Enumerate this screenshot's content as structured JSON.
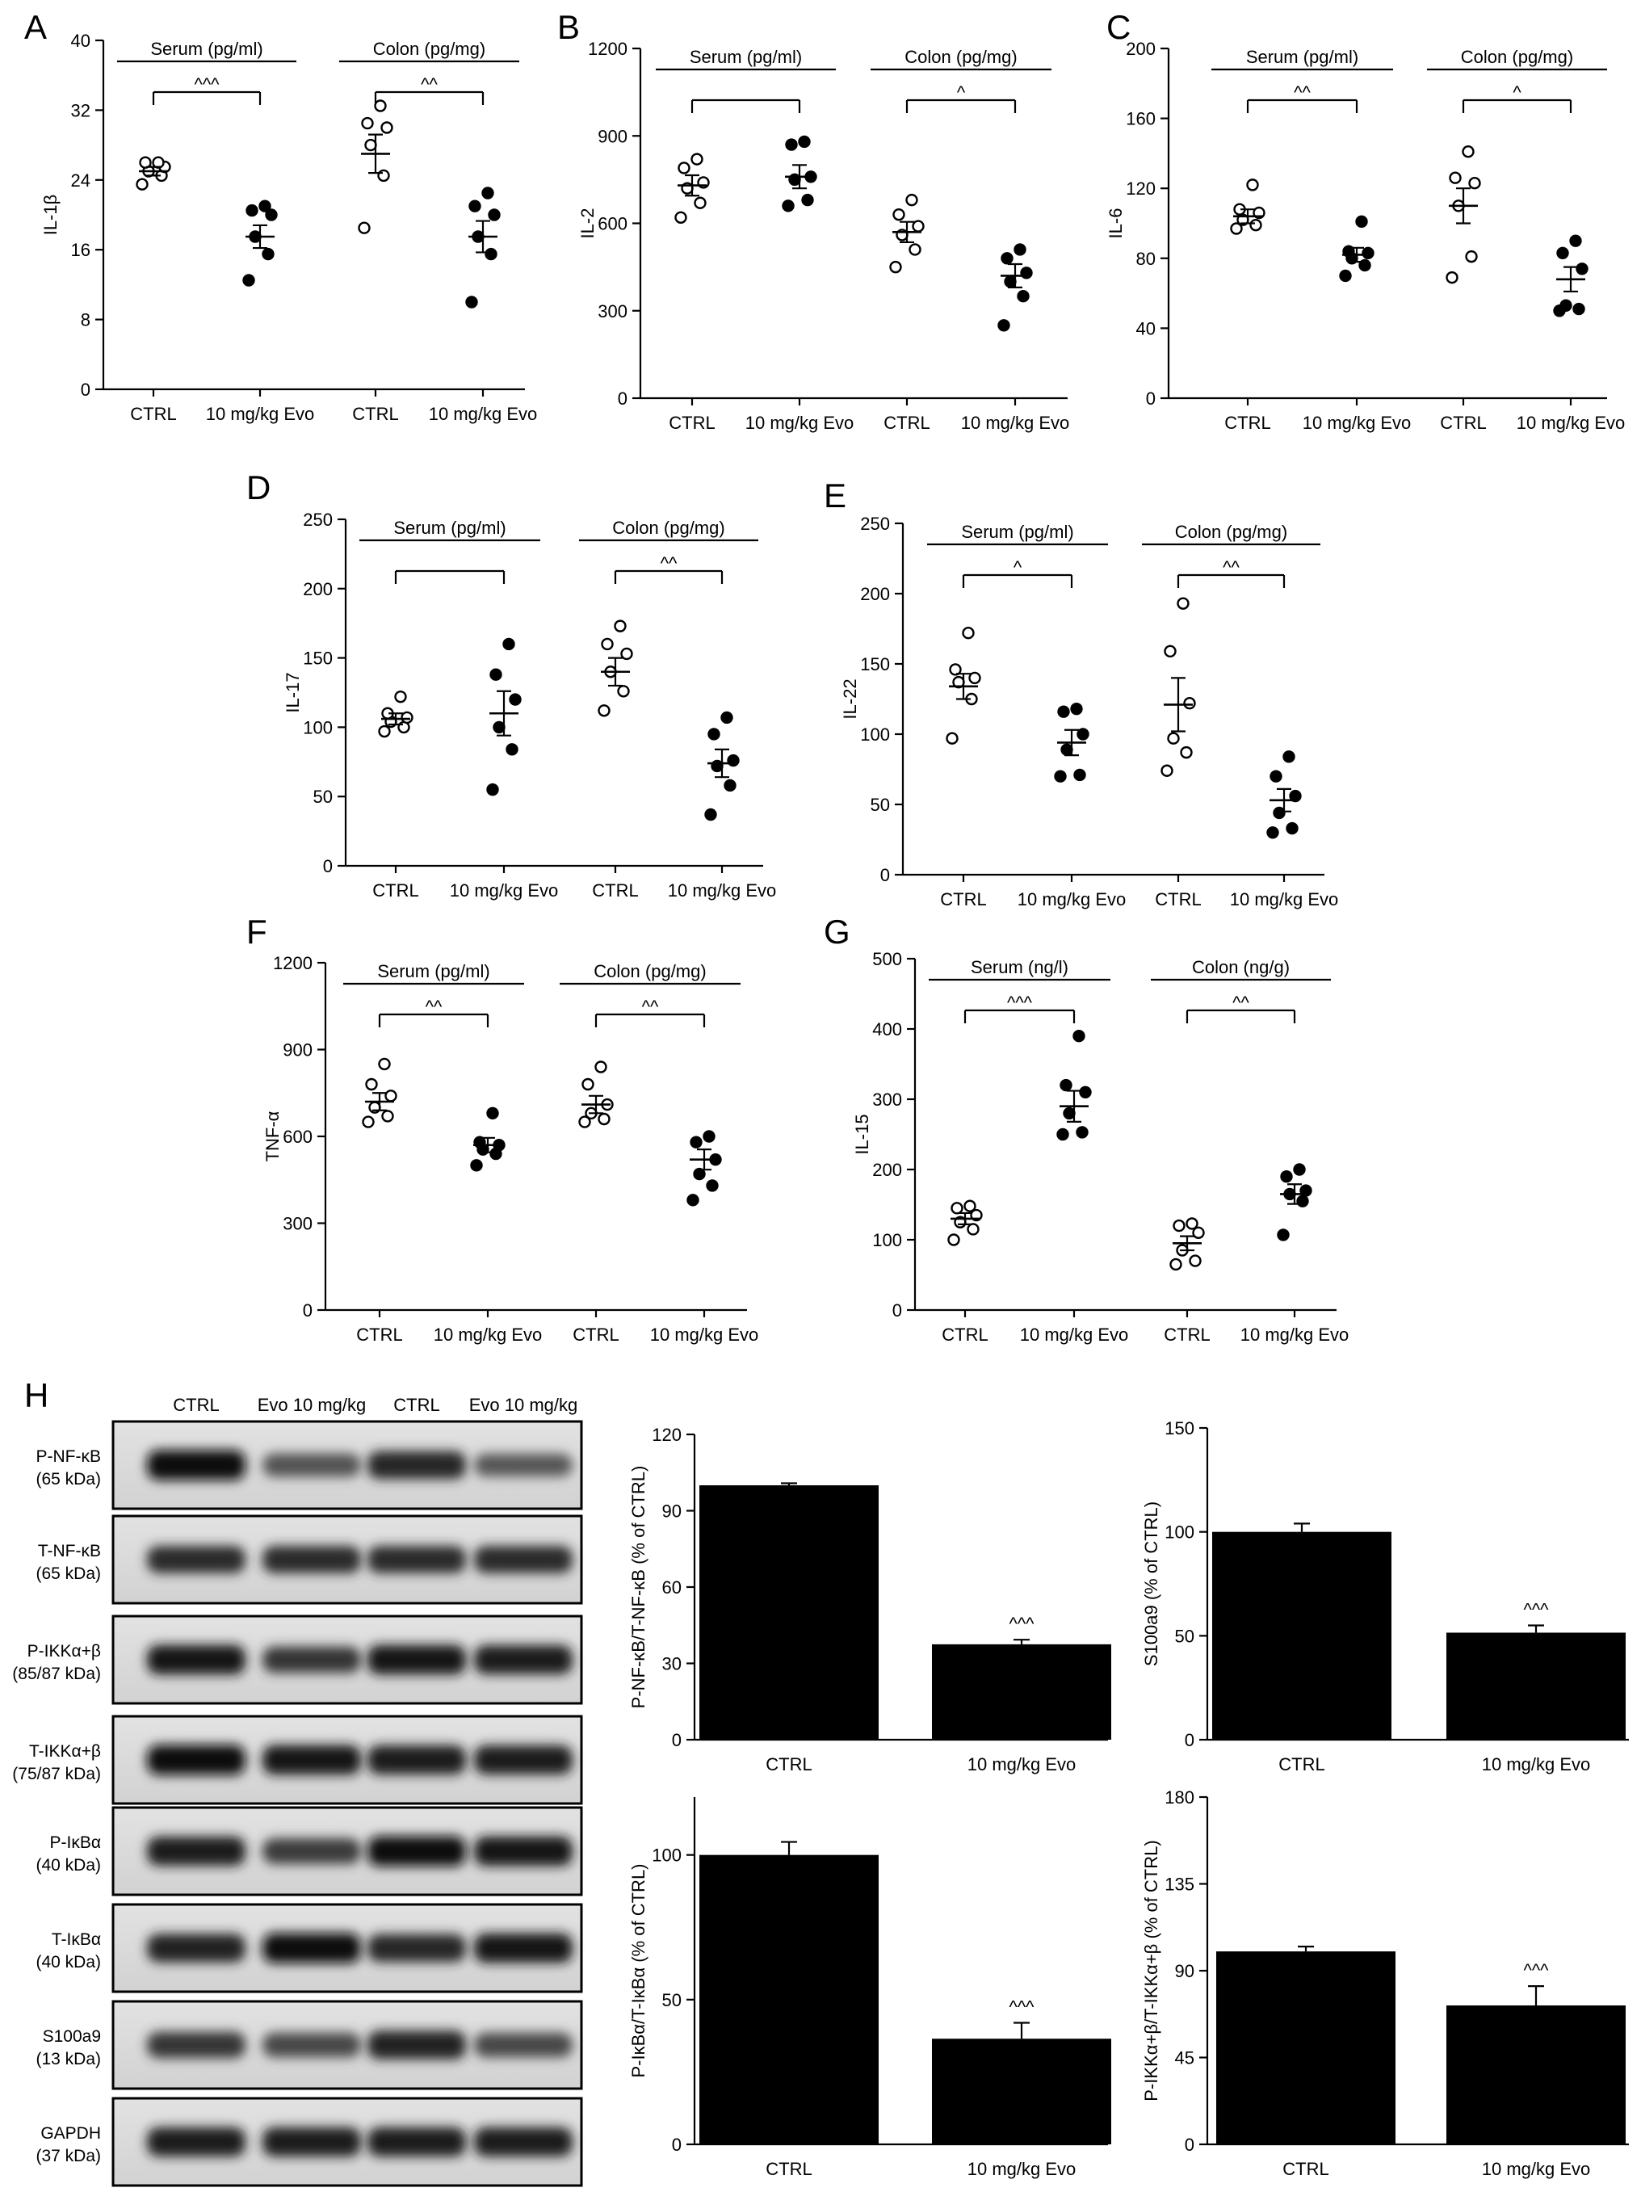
{
  "chart_data": [
    {
      "panel": "A",
      "type": "scatter",
      "ylabel": "IL-1β",
      "ylim": [
        0,
        40
      ],
      "yticks": [
        0,
        8,
        16,
        24,
        32,
        40
      ],
      "categories": [
        "CTRL",
        "10 mg/kg Evo",
        "CTRL",
        "10 mg/kg Evo"
      ],
      "groups": [
        {
          "label": "Serum (pg/ml)",
          "sig": "^^^"
        },
        {
          "label": "Colon (pg/mg)",
          "sig": "^^"
        }
      ],
      "series": [
        {
          "open": true,
          "points": [
            23.5,
            24.5,
            25,
            25.5,
            26,
            26
          ],
          "mean": 25,
          "sem": 0.5
        },
        {
          "open": false,
          "points": [
            12.5,
            15.5,
            17.5,
            20,
            20.5,
            21
          ],
          "mean": 17.5,
          "sem": 1.3
        },
        {
          "open": true,
          "points": [
            18.5,
            24.5,
            28,
            30,
            30.5,
            32.5
          ],
          "mean": 27,
          "sem": 2.2
        },
        {
          "open": false,
          "points": [
            10,
            15.5,
            17.5,
            20,
            21,
            22.5
          ],
          "mean": 17.5,
          "sem": 1.8
        }
      ]
    },
    {
      "panel": "B",
      "type": "scatter",
      "ylabel": "IL-2",
      "ylim": [
        0,
        1200
      ],
      "yticks": [
        0,
        300,
        600,
        900,
        1200
      ],
      "categories": [
        "CTRL",
        "10 mg/kg Evo",
        "CTRL",
        "10 mg/kg Evo"
      ],
      "groups": [
        {
          "label": "Serum (pg/ml)",
          "sig": ""
        },
        {
          "label": "Colon (pg/mg)",
          "sig": "^"
        }
      ],
      "series": [
        {
          "open": true,
          "points": [
            620,
            670,
            720,
            740,
            790,
            820
          ],
          "mean": 730,
          "sem": 35
        },
        {
          "open": false,
          "points": [
            660,
            680,
            750,
            760,
            870,
            880
          ],
          "mean": 760,
          "sem": 40
        },
        {
          "open": true,
          "points": [
            450,
            510,
            560,
            590,
            630,
            680
          ],
          "mean": 570,
          "sem": 35
        },
        {
          "open": false,
          "points": [
            250,
            350,
            400,
            430,
            480,
            510
          ],
          "mean": 420,
          "sem": 40
        }
      ]
    },
    {
      "panel": "C",
      "type": "scatter",
      "ylabel": "IL-6",
      "ylim": [
        0,
        200
      ],
      "yticks": [
        0,
        40,
        80,
        120,
        160,
        200
      ],
      "categories": [
        "CTRL",
        "10 mg/kg Evo",
        "CTRL",
        "10 mg/kg Evo"
      ],
      "groups": [
        {
          "label": "Serum (pg/ml)",
          "sig": "^^"
        },
        {
          "label": "Colon (pg/mg)",
          "sig": "^"
        }
      ],
      "series": [
        {
          "open": true,
          "points": [
            97,
            99,
            102,
            106,
            108,
            122
          ],
          "mean": 104,
          "sem": 4
        },
        {
          "open": false,
          "points": [
            70,
            76,
            80,
            83,
            84,
            101
          ],
          "mean": 82,
          "sem": 4
        },
        {
          "open": true,
          "points": [
            69,
            81,
            110,
            123,
            126,
            141
          ],
          "mean": 110,
          "sem": 10
        },
        {
          "open": false,
          "points": [
            50,
            51,
            53,
            74,
            83,
            90
          ],
          "mean": 68,
          "sem": 7
        }
      ]
    },
    {
      "panel": "D",
      "type": "scatter",
      "ylabel": "IL-17",
      "ylim": [
        0,
        250
      ],
      "yticks": [
        0,
        50,
        100,
        150,
        200,
        250
      ],
      "categories": [
        "CTRL",
        "10 mg/kg Evo",
        "CTRL",
        "10 mg/kg Evo"
      ],
      "groups": [
        {
          "label": "Serum (pg/ml)",
          "sig": ""
        },
        {
          "label": "Colon (pg/mg)",
          "sig": "^^"
        }
      ],
      "series": [
        {
          "open": true,
          "points": [
            97,
            100,
            104,
            107,
            110,
            122
          ],
          "mean": 106,
          "sem": 4
        },
        {
          "open": false,
          "points": [
            55,
            84,
            100,
            120,
            138,
            160
          ],
          "mean": 110,
          "sem": 16
        },
        {
          "open": true,
          "points": [
            112,
            126,
            140,
            153,
            160,
            173
          ],
          "mean": 140,
          "sem": 10
        },
        {
          "open": false,
          "points": [
            37,
            58,
            72,
            76,
            95,
            107
          ],
          "mean": 74,
          "sem": 10
        }
      ]
    },
    {
      "panel": "E",
      "type": "scatter",
      "ylabel": "IL-22",
      "ylim": [
        0,
        250
      ],
      "yticks": [
        0,
        50,
        100,
        150,
        200,
        250
      ],
      "categories": [
        "CTRL",
        "10 mg/kg Evo",
        "CTRL",
        "10 mg/kg Evo"
      ],
      "groups": [
        {
          "label": "Serum (pg/ml)",
          "sig": "^"
        },
        {
          "label": "Colon (pg/mg)",
          "sig": "^^"
        }
      ],
      "series": [
        {
          "open": true,
          "points": [
            97,
            125,
            137,
            140,
            146,
            172
          ],
          "mean": 134,
          "sem": 9
        },
        {
          "open": false,
          "points": [
            70,
            71,
            89,
            100,
            116,
            118
          ],
          "mean": 94,
          "sem": 9
        },
        {
          "open": true,
          "points": [
            74,
            87,
            97,
            122,
            159,
            193
          ],
          "mean": 121,
          "sem": 19
        },
        {
          "open": false,
          "points": [
            30,
            33,
            44,
            56,
            70,
            84
          ],
          "mean": 53,
          "sem": 8
        }
      ]
    },
    {
      "panel": "F",
      "type": "scatter",
      "ylabel": "TNF-α",
      "ylim": [
        0,
        1200
      ],
      "yticks": [
        0,
        300,
        600,
        900,
        1200
      ],
      "categories": [
        "CTRL",
        "10 mg/kg Evo",
        "CTRL",
        "10 mg/kg Evo"
      ],
      "groups": [
        {
          "label": "Serum (pg/ml)",
          "sig": "^^"
        },
        {
          "label": "Colon (pg/mg)",
          "sig": "^^"
        }
      ],
      "series": [
        {
          "open": true,
          "points": [
            650,
            670,
            700,
            740,
            780,
            850
          ],
          "mean": 720,
          "sem": 30
        },
        {
          "open": false,
          "points": [
            500,
            540,
            555,
            570,
            580,
            680
          ],
          "mean": 570,
          "sem": 25
        },
        {
          "open": true,
          "points": [
            650,
            660,
            680,
            710,
            780,
            840
          ],
          "mean": 710,
          "sem": 30
        },
        {
          "open": false,
          "points": [
            380,
            430,
            470,
            520,
            580,
            600
          ],
          "mean": 520,
          "sem": 35
        }
      ]
    },
    {
      "panel": "G",
      "type": "scatter",
      "ylabel": "IL-15",
      "ylim": [
        0,
        500
      ],
      "yticks": [
        0,
        100,
        200,
        300,
        400,
        500
      ],
      "categories": [
        "CTRL",
        "10 mg/kg Evo",
        "CTRL",
        "10 mg/kg Evo"
      ],
      "groups": [
        {
          "label": "Serum (ng/l)",
          "sig": "^^^"
        },
        {
          "label": "Colon (ng/g)",
          "sig": "^^"
        }
      ],
      "series": [
        {
          "open": true,
          "points": [
            100,
            115,
            125,
            135,
            145,
            148
          ],
          "mean": 130,
          "sem": 8
        },
        {
          "open": false,
          "points": [
            250,
            253,
            280,
            310,
            320,
            390
          ],
          "mean": 290,
          "sem": 22
        },
        {
          "open": true,
          "points": [
            65,
            70,
            85,
            110,
            120,
            123
          ],
          "mean": 95,
          "sem": 10
        },
        {
          "open": false,
          "points": [
            107,
            155,
            165,
            170,
            190,
            200
          ],
          "mean": 165,
          "sem": 14
        }
      ]
    },
    {
      "panel": "H1",
      "type": "bar",
      "ylabel": "P-NF-κB/T-NF-κB (% of CTRL)",
      "ylim": [
        0,
        120
      ],
      "yticks": [
        0,
        30,
        60,
        90,
        120
      ],
      "categories": [
        "CTRL",
        "10 mg/kg Evo"
      ],
      "values": [
        100,
        37.5
      ],
      "errors": [
        0.8,
        1.8
      ],
      "sig": [
        "",
        "^^^"
      ]
    },
    {
      "panel": "H2",
      "type": "bar",
      "ylabel": "S100a9 (% of CTRL)",
      "ylim": [
        0,
        150
      ],
      "yticks": [
        0,
        50,
        100,
        150
      ],
      "categories": [
        "CTRL",
        "10 mg/kg Evo"
      ],
      "values": [
        100,
        51.5
      ],
      "errors": [
        4,
        3.5
      ],
      "sig": [
        "",
        "^^^"
      ]
    },
    {
      "panel": "H3",
      "type": "bar",
      "ylabel": "P-IκBα/T-IκBα (% of CTRL)",
      "ylim": [
        0,
        120
      ],
      "yticks": [
        0,
        50,
        100
      ],
      "categories": [
        "CTRL",
        "10 mg/kg Evo"
      ],
      "values": [
        100,
        36.5
      ],
      "errors": [
        4.5,
        5.5
      ],
      "sig": [
        "",
        "^^^"
      ]
    },
    {
      "panel": "H4",
      "type": "bar",
      "ylabel": "P-IKKα+β/T-IKKα+β (% of CTRL)",
      "ylim": [
        0,
        180
      ],
      "yticks": [
        0,
        45,
        90,
        135,
        180
      ],
      "categories": [
        "CTRL",
        "10 mg/kg Evo"
      ],
      "values": [
        100,
        72
      ],
      "errors": [
        2.5,
        10
      ],
      "sig": [
        "",
        "^^^"
      ]
    }
  ],
  "panel_letters": [
    "A",
    "B",
    "C",
    "D",
    "E",
    "F",
    "G",
    "H"
  ],
  "blot": {
    "columns": [
      "CTRL",
      "Evo 10 mg/kg",
      "CTRL",
      "Evo 10 mg/kg"
    ],
    "rows": [
      {
        "name": "P-NF-κB",
        "kda": "(65 kDa)",
        "intensity": [
          0.95,
          0.35,
          0.75,
          0.3
        ]
      },
      {
        "name": "T-NF-κB",
        "kda": "(65 kDa)",
        "intensity": [
          0.7,
          0.7,
          0.7,
          0.7
        ]
      },
      {
        "name": "P-IKKα+β",
        "kda": "(85/87 kDa)",
        "intensity": [
          0.9,
          0.6,
          0.9,
          0.85
        ]
      },
      {
        "name": "T-IKKα+β",
        "kda": "(75/87 kDa)",
        "intensity": [
          0.95,
          0.9,
          0.85,
          0.85
        ]
      },
      {
        "name": "P-IκBα",
        "kda": "(40 kDa)",
        "intensity": [
          0.85,
          0.55,
          0.95,
          0.9
        ]
      },
      {
        "name": "T-IκBα",
        "kda": "(40 kDa)",
        "intensity": [
          0.8,
          0.95,
          0.75,
          0.9
        ]
      },
      {
        "name": "S100a9",
        "kda": "(13 kDa)",
        "intensity": [
          0.6,
          0.45,
          0.8,
          0.45
        ]
      },
      {
        "name": "GAPDH",
        "kda": "(37 kDa)",
        "intensity": [
          0.85,
          0.85,
          0.85,
          0.85
        ]
      }
    ]
  }
}
